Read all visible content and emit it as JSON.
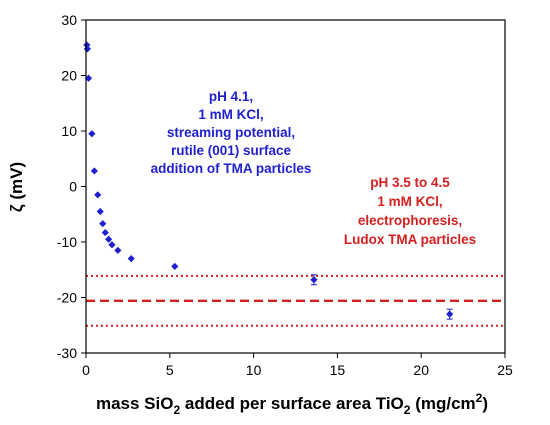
{
  "chart_data": {
    "type": "scatter",
    "xlabel": {
      "pre": "mass SiO",
      "sub1": "2",
      "mid": " added per surface area TiO",
      "sub2": "2",
      "post": " (mg/cm",
      "sup": "2",
      "end": ")"
    },
    "ylabel": "ζ (mV)",
    "xlim": [
      0,
      25
    ],
    "ylim": [
      -30,
      30
    ],
    "xticks": [
      0,
      5,
      10,
      15,
      20,
      25
    ],
    "yticks": [
      30,
      20,
      10,
      0,
      -10,
      -20,
      -30
    ],
    "grid": false,
    "series": [
      {
        "color": "#1f1fd0",
        "points": [
          {
            "x": 0.05,
            "y": 25.5
          },
          {
            "x": 0.08,
            "y": 24.8
          },
          {
            "x": 0.15,
            "y": 19.5
          },
          {
            "x": 0.35,
            "y": 9.5
          },
          {
            "x": 0.5,
            "y": 2.8
          },
          {
            "x": 0.7,
            "y": -1.5
          },
          {
            "x": 0.85,
            "y": -4.5
          },
          {
            "x": 1.0,
            "y": -6.7
          },
          {
            "x": 1.15,
            "y": -8.3
          },
          {
            "x": 1.35,
            "y": -9.5
          },
          {
            "x": 1.55,
            "y": -10.5
          },
          {
            "x": 1.9,
            "y": -11.5
          },
          {
            "x": 2.7,
            "y": -13.0
          },
          {
            "x": 5.3,
            "y": -14.4
          },
          {
            "x": 13.6,
            "y": -16.8,
            "err": 0.9
          },
          {
            "x": 21.7,
            "y": -23.0,
            "err": 0.9
          }
        ]
      }
    ],
    "reference_lines": [
      {
        "y": -20.6,
        "style": "dashed",
        "color": "#d42020"
      },
      {
        "y": -16.1,
        "style": "dotted",
        "color": "#d42020"
      },
      {
        "y": -25.1,
        "style": "dotted",
        "color": "#d42020"
      }
    ],
    "annotations": {
      "blue": {
        "color": "#1f1fd0",
        "lines": [
          "pH 4.1,",
          "1 mM KCl,",
          "streaming potential,",
          "rutile (001) surface",
          "addition of TMA particles"
        ]
      },
      "red": {
        "color": "#d42020",
        "lines": [
          "pH 3.5 to 4.5",
          "1 mM KCl,",
          "electrophoresis,",
          "Ludox TMA particles"
        ]
      }
    }
  }
}
